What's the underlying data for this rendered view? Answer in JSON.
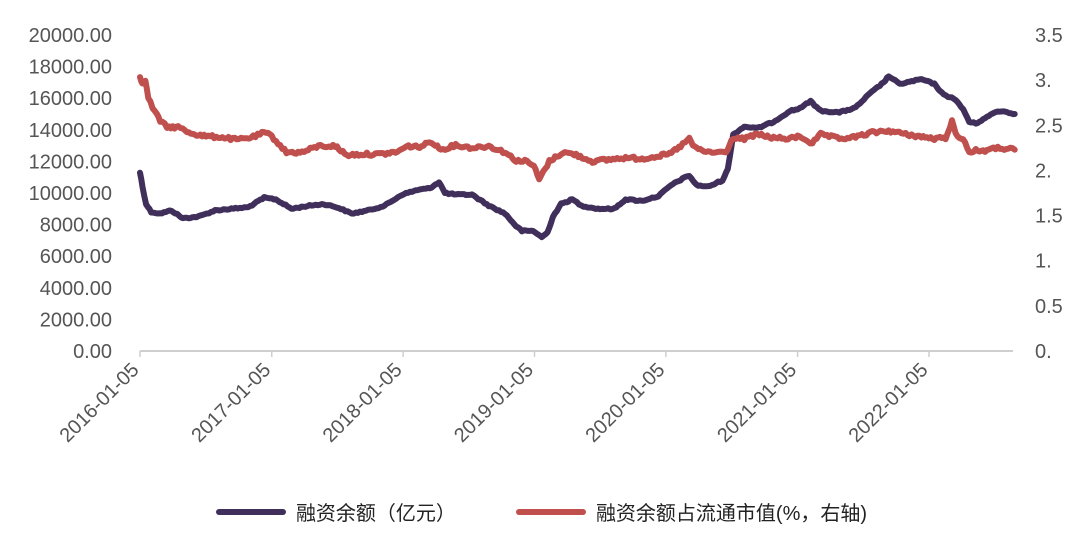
{
  "colors": {
    "financing_balance": "#3f2f5a",
    "financing_ratio": "#c0504d",
    "axis": "#cfcfcf",
    "text": "#555555"
  },
  "chart_data": {
    "type": "line",
    "title": "",
    "left_axis": {
      "min": 0,
      "max": 20000,
      "ticks": [
        "0.00",
        "2000.00",
        "4000.00",
        "6000.00",
        "8000.00",
        "10000.00",
        "12000.00",
        "14000.00",
        "16000.00",
        "18000.00",
        "20000.00"
      ]
    },
    "right_axis": {
      "min": 0,
      "max": 3.5,
      "ticks": [
        "0.",
        "0.5",
        "1.",
        "1.5",
        "2.",
        "2.5",
        "3.",
        "3.5"
      ]
    },
    "x_axis": {
      "start": "2016-01-05",
      "end": "2022-08-31",
      "tick_labels": [
        "2016-01-05",
        "2017-01-05",
        "2018-01-05",
        "2019-01-05",
        "2020-01-05",
        "2021-01-05",
        "2022-01-05"
      ]
    },
    "legend_position": "bottom",
    "series": [
      {
        "name": "融资余额（亿元）",
        "axis": "left",
        "points": [
          [
            "2016-01-05",
            11300
          ],
          [
            "2016-01-12",
            10400
          ],
          [
            "2016-01-22",
            9300
          ],
          [
            "2016-02-05",
            8800
          ],
          [
            "2016-03-01",
            8700
          ],
          [
            "2016-04-01",
            8900
          ],
          [
            "2016-05-03",
            8400
          ],
          [
            "2016-06-15",
            8500
          ],
          [
            "2016-08-01",
            8900
          ],
          [
            "2016-09-15",
            9000
          ],
          [
            "2016-11-01",
            9100
          ],
          [
            "2016-12-15",
            9700
          ],
          [
            "2017-01-16",
            9600
          ],
          [
            "2017-03-01",
            9000
          ],
          [
            "2017-04-20",
            9200
          ],
          [
            "2017-05-30",
            9300
          ],
          [
            "2017-07-05",
            9100
          ],
          [
            "2017-08-15",
            8700
          ],
          [
            "2017-09-30",
            8900
          ],
          [
            "2017-11-15",
            9200
          ],
          [
            "2018-01-02",
            9900
          ],
          [
            "2018-02-15",
            10200
          ],
          [
            "2018-03-20",
            10300
          ],
          [
            "2018-04-15",
            10700
          ],
          [
            "2018-05-01",
            10000
          ],
          [
            "2018-06-01",
            9900
          ],
          [
            "2018-07-15",
            9900
          ],
          [
            "2018-08-31",
            9200
          ],
          [
            "2018-10-15",
            8700
          ],
          [
            "2018-11-15",
            7900
          ],
          [
            "2018-12-01",
            7600
          ],
          [
            "2019-01-02",
            7600
          ],
          [
            "2019-01-25",
            7200
          ],
          [
            "2019-02-10",
            7500
          ],
          [
            "2019-02-25",
            8500
          ],
          [
            "2019-03-20",
            9300
          ],
          [
            "2019-04-20",
            9600
          ],
          [
            "2019-05-15",
            9200
          ],
          [
            "2019-06-30",
            9000
          ],
          [
            "2019-08-15",
            9000
          ],
          [
            "2019-09-15",
            9600
          ],
          [
            "2019-10-30",
            9500
          ],
          [
            "2019-12-15",
            9800
          ],
          [
            "2020-01-20",
            10500
          ],
          [
            "2020-02-20",
            10900
          ],
          [
            "2020-03-10",
            11100
          ],
          [
            "2020-03-30",
            10500
          ],
          [
            "2020-05-01",
            10400
          ],
          [
            "2020-06-10",
            10800
          ],
          [
            "2020-06-25",
            11500
          ],
          [
            "2020-07-10",
            13700
          ],
          [
            "2020-08-10",
            14200
          ],
          [
            "2020-09-15",
            14100
          ],
          [
            "2020-10-30",
            14500
          ],
          [
            "2020-12-15",
            15200
          ],
          [
            "2021-01-05",
            15300
          ],
          [
            "2021-02-10",
            15800
          ],
          [
            "2021-03-10",
            15200
          ],
          [
            "2021-05-01",
            15100
          ],
          [
            "2021-06-15",
            15400
          ],
          [
            "2021-07-20",
            16200
          ],
          [
            "2021-09-01",
            17000
          ],
          [
            "2021-09-15",
            17400
          ],
          [
            "2021-10-15",
            16900
          ],
          [
            "2021-12-15",
            17200
          ],
          [
            "2022-01-20",
            16900
          ],
          [
            "2022-02-15",
            16200
          ],
          [
            "2022-03-15",
            16000
          ],
          [
            "2022-04-10",
            15300
          ],
          [
            "2022-04-27",
            14500
          ],
          [
            "2022-05-15",
            14400
          ],
          [
            "2022-06-15",
            14800
          ],
          [
            "2022-07-05",
            15100
          ],
          [
            "2022-07-25",
            15200
          ],
          [
            "2022-08-31",
            15000
          ]
        ]
      },
      {
        "name": "融资余额占流通市值(%，右轴)",
        "axis": "right",
        "points": [
          [
            "2016-01-05",
            3.05
          ],
          [
            "2016-01-12",
            2.95
          ],
          [
            "2016-01-20",
            3.0
          ],
          [
            "2016-01-28",
            2.8
          ],
          [
            "2016-02-15",
            2.65
          ],
          [
            "2016-03-01",
            2.55
          ],
          [
            "2016-03-20",
            2.48
          ],
          [
            "2016-04-20",
            2.48
          ],
          [
            "2016-05-20",
            2.42
          ],
          [
            "2016-07-01",
            2.38
          ],
          [
            "2016-08-15",
            2.37
          ],
          [
            "2016-09-30",
            2.34
          ],
          [
            "2016-11-15",
            2.37
          ],
          [
            "2016-12-15",
            2.42
          ],
          [
            "2017-01-05",
            2.38
          ],
          [
            "2017-02-15",
            2.2
          ],
          [
            "2017-03-30",
            2.2
          ],
          [
            "2017-05-15",
            2.27
          ],
          [
            "2017-06-30",
            2.27
          ],
          [
            "2017-08-01",
            2.17
          ],
          [
            "2017-09-15",
            2.18
          ],
          [
            "2017-10-31",
            2.18
          ],
          [
            "2017-12-15",
            2.2
          ],
          [
            "2018-01-20",
            2.27
          ],
          [
            "2018-02-20",
            2.26
          ],
          [
            "2018-03-25",
            2.32
          ],
          [
            "2018-04-20",
            2.23
          ],
          [
            "2018-05-31",
            2.28
          ],
          [
            "2018-07-15",
            2.25
          ],
          [
            "2018-08-31",
            2.27
          ],
          [
            "2018-10-15",
            2.2
          ],
          [
            "2018-11-15",
            2.11
          ],
          [
            "2018-12-15",
            2.1
          ],
          [
            "2019-01-03",
            2.05
          ],
          [
            "2019-01-18",
            1.9
          ],
          [
            "2019-02-15",
            2.1
          ],
          [
            "2019-03-25",
            2.2
          ],
          [
            "2019-04-25",
            2.18
          ],
          [
            "2019-06-15",
            2.1
          ],
          [
            "2019-07-30",
            2.12
          ],
          [
            "2019-09-15",
            2.14
          ],
          [
            "2019-10-31",
            2.13
          ],
          [
            "2019-12-15",
            2.16
          ],
          [
            "2020-01-15",
            2.18
          ],
          [
            "2020-02-15",
            2.27
          ],
          [
            "2020-03-10",
            2.35
          ],
          [
            "2020-03-25",
            2.25
          ],
          [
            "2020-05-01",
            2.2
          ],
          [
            "2020-06-10",
            2.2
          ],
          [
            "2020-06-25",
            2.22
          ],
          [
            "2020-07-05",
            2.35
          ],
          [
            "2020-08-10",
            2.35
          ],
          [
            "2020-09-15",
            2.4
          ],
          [
            "2020-10-30",
            2.36
          ],
          [
            "2020-12-15",
            2.35
          ],
          [
            "2021-01-10",
            2.38
          ],
          [
            "2021-02-15",
            2.3
          ],
          [
            "2021-03-10",
            2.4
          ],
          [
            "2021-05-01",
            2.35
          ],
          [
            "2021-06-15",
            2.37
          ],
          [
            "2021-08-01",
            2.42
          ],
          [
            "2021-09-15",
            2.44
          ],
          [
            "2021-11-01",
            2.4
          ],
          [
            "2021-12-20",
            2.37
          ],
          [
            "2022-01-20",
            2.35
          ],
          [
            "2022-02-20",
            2.36
          ],
          [
            "2022-03-10",
            2.55
          ],
          [
            "2022-03-20",
            2.4
          ],
          [
            "2022-04-10",
            2.35
          ],
          [
            "2022-04-27",
            2.2
          ],
          [
            "2022-05-15",
            2.22
          ],
          [
            "2022-06-15",
            2.22
          ],
          [
            "2022-07-15",
            2.25
          ],
          [
            "2022-08-31",
            2.23
          ]
        ]
      }
    ]
  }
}
